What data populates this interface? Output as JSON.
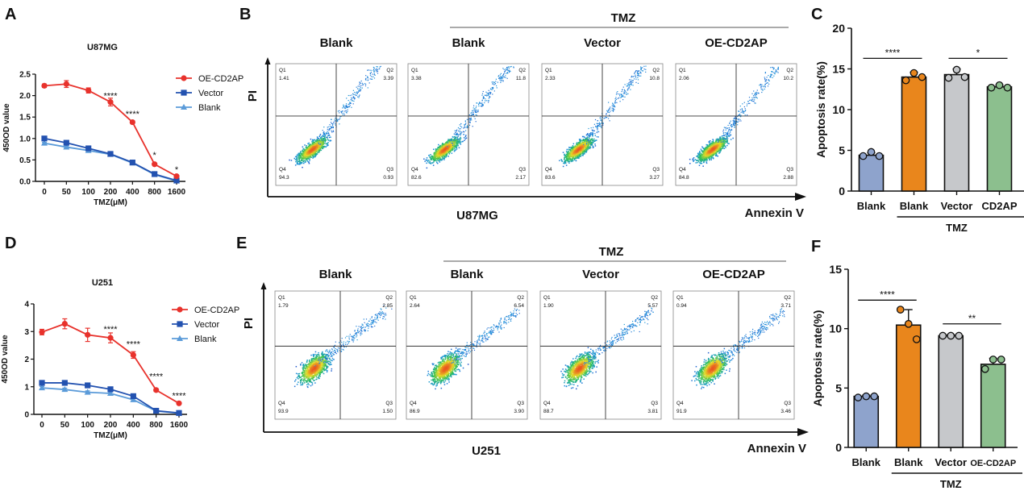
{
  "panels": {
    "A": "A",
    "B": "B",
    "C": "C",
    "D": "D",
    "E": "E",
    "F": "F"
  },
  "chart_data": [
    {
      "id": "A",
      "type": "line",
      "title": "U87MG",
      "xlabel": "TMZ(μM)",
      "ylabel": "450OD value",
      "categories": [
        "0",
        "50",
        "100",
        "200",
        "400",
        "800",
        "1600"
      ],
      "ylim": [
        0,
        2.5
      ],
      "yticks": [
        "0.0",
        "0.5",
        "1.0",
        "1.5",
        "2.0",
        "2.5"
      ],
      "ytick_values": [
        0,
        0.5,
        1.0,
        1.5,
        2.0,
        2.5
      ],
      "legend_position": "top-right",
      "series": [
        {
          "name": "OE-CD2AP",
          "color": "#e8322c",
          "marker": "circle",
          "values": [
            2.23,
            2.27,
            2.12,
            1.85,
            1.38,
            0.4,
            0.12
          ],
          "errors": [
            0.04,
            0.08,
            0.06,
            0.09,
            0.03,
            0.02,
            0.02
          ]
        },
        {
          "name": "Vector",
          "color": "#2352b0",
          "marker": "square",
          "values": [
            1.0,
            0.9,
            0.77,
            0.64,
            0.44,
            0.17,
            0.02
          ],
          "errors": [
            0.03,
            0.03,
            0.03,
            0.03,
            0.03,
            0.02,
            0.01
          ]
        },
        {
          "name": "Blank",
          "color": "#5b9bd9",
          "marker": "triangle",
          "values": [
            0.89,
            0.8,
            0.72,
            0.63,
            0.43,
            0.16,
            0.01
          ],
          "errors": [
            0.02,
            0.02,
            0.02,
            0.02,
            0.02,
            0.02,
            0.01
          ]
        }
      ],
      "annotations": [
        {
          "category": "200",
          "text": "****",
          "y": 2.0
        },
        {
          "category": "400",
          "text": "****",
          "y": 1.58
        },
        {
          "category": "800",
          "text": "*",
          "y": 0.62
        },
        {
          "category": "1600",
          "text": "*",
          "y": 0.28
        }
      ]
    },
    {
      "id": "D",
      "type": "line",
      "title": "U251",
      "xlabel": "TMZ(μM)",
      "ylabel": "450OD value",
      "categories": [
        "0",
        "50",
        "100",
        "200",
        "400",
        "800",
        "1600"
      ],
      "ylim": [
        0,
        4
      ],
      "yticks": [
        "0",
        "1",
        "2",
        "3",
        "4"
      ],
      "ytick_values": [
        0,
        1,
        2,
        3,
        4
      ],
      "legend_position": "top-right",
      "series": [
        {
          "name": "OE-CD2AP",
          "color": "#e8322c",
          "marker": "circle",
          "values": [
            2.98,
            3.28,
            2.88,
            2.77,
            2.15,
            0.88,
            0.4
          ],
          "errors": [
            0.1,
            0.18,
            0.24,
            0.18,
            0.12,
            0.05,
            0.04
          ]
        },
        {
          "name": "Vector",
          "color": "#2352b0",
          "marker": "square",
          "values": [
            1.14,
            1.14,
            1.05,
            0.91,
            0.66,
            0.13,
            0.05
          ],
          "errors": [
            0.05,
            0.05,
            0.05,
            0.05,
            0.04,
            0.03,
            0.02
          ]
        },
        {
          "name": "Blank",
          "color": "#5b9bd9",
          "marker": "triangle",
          "values": [
            0.96,
            0.9,
            0.8,
            0.76,
            0.53,
            0.12,
            0.04
          ],
          "errors": [
            0.05,
            0.05,
            0.05,
            0.05,
            0.04,
            0.03,
            0.02
          ]
        }
      ],
      "annotations": [
        {
          "category": "200",
          "text": "****",
          "y": 3.1
        },
        {
          "category": "400",
          "text": "****",
          "y": 2.55
        },
        {
          "category": "800",
          "text": "****",
          "y": 1.38
        },
        {
          "category": "1600",
          "text": "****",
          "y": 0.68
        }
      ]
    },
    {
      "id": "B",
      "type": "scatter",
      "subtype": "flow-cytometry-quadrants",
      "cell_line": "U87MG",
      "group_label": "TMZ",
      "xlabel": "Annexin V",
      "ylabel": "PI",
      "plots": [
        {
          "title": "Blank",
          "Q1": "1.41",
          "Q2": "3.39",
          "Q3": "0.93",
          "Q4": "94.3"
        },
        {
          "title": "Blank",
          "Q1": "3.38",
          "Q2": "11.8",
          "Q3": "2.17",
          "Q4": "82.6"
        },
        {
          "title": "Vector",
          "Q1": "2.33",
          "Q2": "10.8",
          "Q3": "3.27",
          "Q4": "83.6"
        },
        {
          "title": "OE-CD2AP",
          "Q1": "2.06",
          "Q2": "10.2",
          "Q3": "2.88",
          "Q4": "84.8"
        }
      ]
    },
    {
      "id": "E",
      "type": "scatter",
      "subtype": "flow-cytometry-quadrants",
      "cell_line": "U251",
      "group_label": "TMZ",
      "xlabel": "Annexin V",
      "ylabel": "PI",
      "plots": [
        {
          "title": "Blank",
          "Q1": "1.79",
          "Q2": "2.85",
          "Q3": "1.50",
          "Q4": "93.9"
        },
        {
          "title": "Blank",
          "Q1": "2.64",
          "Q2": "6.54",
          "Q3": "3.90",
          "Q4": "86.9"
        },
        {
          "title": "Vector",
          "Q1": "1.90",
          "Q2": "5.57",
          "Q3": "3.81",
          "Q4": "88.7"
        },
        {
          "title": "OE-CD2AP",
          "Q1": "0.94",
          "Q2": "3.71",
          "Q3": "3.46",
          "Q4": "91.9"
        }
      ]
    },
    {
      "id": "C",
      "type": "bar",
      "ylabel": "Apoptosis rate(%)",
      "ylim": [
        0,
        20
      ],
      "yticks": [
        "0",
        "5",
        "10",
        "15",
        "20"
      ],
      "ytick_values": [
        0,
        5,
        10,
        15,
        20
      ],
      "categories": [
        "Blank",
        "Blank",
        "Vector",
        "CD2AP"
      ],
      "group_label": "TMZ",
      "colors": [
        "#8ea3cc",
        "#e9861c",
        "#c6c8cb",
        "#8cbf8e"
      ],
      "values": [
        4.4,
        14.0,
        14.3,
        12.8
      ],
      "errors": [
        0.3,
        0.6,
        0.7,
        0.2
      ],
      "points": [
        [
          4.3,
          4.8,
          4.3
        ],
        [
          13.6,
          14.5,
          14.0
        ],
        [
          13.9,
          14.9,
          14.0
        ],
        [
          12.7,
          13.0,
          12.7
        ]
      ],
      "significance": [
        {
          "from": 0,
          "to": 1,
          "text": "****",
          "y": 16.3
        },
        {
          "from": 2,
          "to": 3,
          "text": "*",
          "y": 16.3
        }
      ]
    },
    {
      "id": "F",
      "type": "bar",
      "ylabel": "Apoptosis rate(%)",
      "ylim": [
        0,
        15
      ],
      "yticks": [
        "0",
        "5",
        "10",
        "15"
      ],
      "ytick_values": [
        0,
        5,
        10,
        15
      ],
      "categories": [
        "Blank",
        "Blank",
        "Vector",
        "OE-CD2AP"
      ],
      "group_label": "TMZ",
      "colors": [
        "#8ea3cc",
        "#e9861c",
        "#c6c8cb",
        "#8cbf8e"
      ],
      "values": [
        4.3,
        10.3,
        9.4,
        7.0
      ],
      "errors": [
        0.1,
        1.3,
        0.1,
        0.5
      ],
      "points": [
        [
          4.2,
          4.3,
          4.3
        ],
        [
          11.6,
          10.4,
          9.1
        ],
        [
          9.4,
          9.4,
          9.4
        ],
        [
          6.6,
          7.4,
          7.4
        ]
      ],
      "significance": [
        {
          "from": 0,
          "to": 1,
          "text": "****",
          "y": 12.4
        },
        {
          "from": 2,
          "to": 3,
          "text": "**",
          "y": 10.4
        }
      ]
    }
  ]
}
